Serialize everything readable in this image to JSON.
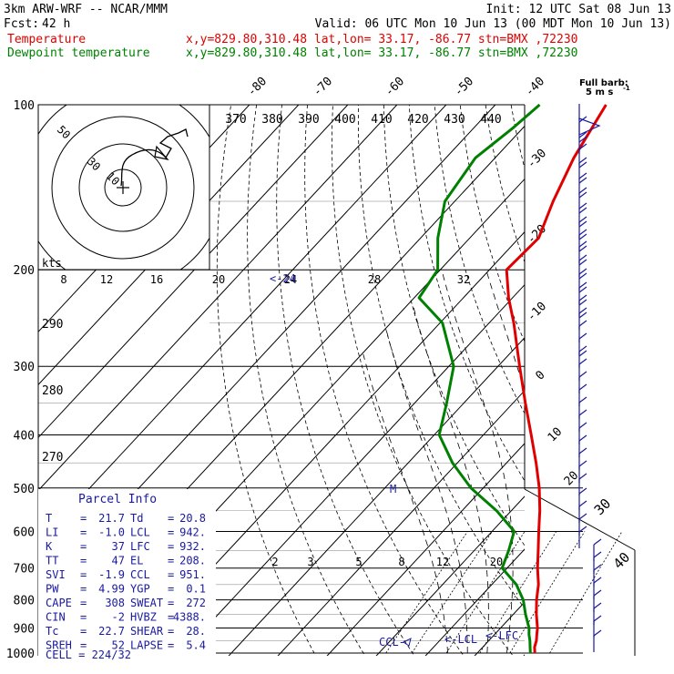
{
  "header": {
    "model": "3km ARW-WRF -- NCAR/MMM",
    "init": "Init: 12 UTC Sat 08 Jun 13",
    "fcst_label": "Fcst:",
    "fcst_value": "42 h",
    "valid": "Valid: 06 UTC Mon 10 Jun 13 (00 MDT Mon 10 Jun 13)",
    "temp_label": "Temperature",
    "temp_loc": "x,y=829.80,310.48   lat,lon= 33.17, -86.77  stn=BMX ,72230",
    "dew_label": "Dewpoint temperature",
    "dew_loc": "x,y=829.80,310.48   lat,lon= 33.17, -86.77  stn=BMX ,72230"
  },
  "colors": {
    "temperature": "#e00000",
    "dewpoint": "#008000",
    "wind_barbs": "#1a1aa0",
    "hodograph": "#000000"
  },
  "chart_data": {
    "type": "line",
    "pressure_levels": [
      "100",
      "200",
      "300",
      "400",
      "500",
      "600",
      "700",
      "800",
      "900",
      "1000"
    ],
    "skewed_isotherm_labels": [
      "-80",
      "-70",
      "-60",
      "-50",
      "-40",
      "-30",
      "-20",
      "-10",
      "0",
      "10",
      "20",
      "30",
      "40"
    ],
    "theta_labels_top": [
      "370",
      "380",
      "390",
      "400",
      "410",
      "420",
      "430",
      "440"
    ],
    "theta_labels_left": [
      "290",
      "280",
      "270"
    ],
    "mixing_ratio_labels": [
      "2",
      "3",
      "5",
      "8",
      "12",
      "20"
    ],
    "hodograph_label": "kts",
    "hodograph_speed_labels": [
      "8",
      "12",
      "16",
      "20",
      "24",
      "28",
      "32"
    ],
    "hodograph_ring_labels": [
      "50",
      "30",
      "10"
    ],
    "lcl_marker": "<-LCL",
    "lfc_marker": "<-LFC",
    "ccl_marker": "CCL-",
    "level_marker_24": "<-24",
    "mark_el": "M",
    "barb_legend": "Full barb:",
    "barb_legend_unit": "5 m s",
    "series": [
      {
        "name": "Temperature",
        "points": [
          [
            1000,
            21.7
          ],
          [
            975,
            20.5
          ],
          [
            950,
            19.7
          ],
          [
            925,
            18.6
          ],
          [
            900,
            17.5
          ],
          [
            850,
            14.7
          ],
          [
            800,
            12.0
          ],
          [
            750,
            9.5
          ],
          [
            700,
            6.2
          ],
          [
            650,
            3.0
          ],
          [
            600,
            -0.5
          ],
          [
            550,
            -4.2
          ],
          [
            500,
            -8.6
          ],
          [
            450,
            -14.0
          ],
          [
            400,
            -20.3
          ],
          [
            350,
            -27.5
          ],
          [
            300,
            -35.6
          ],
          [
            250,
            -45.0
          ],
          [
            225,
            -50.8
          ],
          [
            200,
            -56.5
          ],
          [
            175,
            -56.0
          ],
          [
            150,
            -60.0
          ],
          [
            125,
            -64.0
          ],
          [
            110,
            -66.0
          ],
          [
            100,
            -67.5
          ]
        ]
      },
      {
        "name": "Dewpoint temperature",
        "points": [
          [
            1000,
            20.8
          ],
          [
            975,
            19.6
          ],
          [
            950,
            18.4
          ],
          [
            925,
            17.0
          ],
          [
            900,
            15.8
          ],
          [
            850,
            12.5
          ],
          [
            800,
            9.3
          ],
          [
            750,
            5.0
          ],
          [
            700,
            -1.0
          ],
          [
            650,
            -3.0
          ],
          [
            600,
            -5.5
          ],
          [
            550,
            -13.0
          ],
          [
            500,
            -22.5
          ],
          [
            450,
            -31.0
          ],
          [
            400,
            -39.0
          ],
          [
            350,
            -43.5
          ],
          [
            300,
            -49.0
          ],
          [
            250,
            -59.5
          ],
          [
            225,
            -69.0
          ],
          [
            200,
            -70.5
          ],
          [
            175,
            -76.5
          ],
          [
            150,
            -82.0
          ],
          [
            125,
            -84.0
          ],
          [
            110,
            -82.0
          ],
          [
            100,
            -81.0
          ]
        ]
      }
    ],
    "xlim": [
      -40,
      50
    ],
    "ylim": [
      1000,
      100
    ]
  },
  "parcel_info": {
    "title": "Parcel Info",
    "rows": [
      [
        "T",
        "=",
        "21.7",
        "Td",
        "=",
        "20.8"
      ],
      [
        "LI",
        "=",
        "-1.0",
        "LCL",
        "=",
        "942."
      ],
      [
        "K",
        "=",
        "37",
        "LFC",
        "=",
        "932."
      ],
      [
        "TT",
        "=",
        "47",
        "EL",
        "=",
        "208."
      ],
      [
        "SVI",
        "=",
        "-1.9",
        "CCL",
        "=",
        "951."
      ],
      [
        "PW",
        "=",
        "4.99",
        "YGP",
        "=",
        "0.1"
      ],
      [
        "CAPE",
        "=",
        "308",
        "SWEAT",
        "=",
        "272"
      ],
      [
        "CIN",
        "=",
        "-2",
        "HVBZ",
        "=",
        "4388."
      ],
      [
        "Tc",
        "=",
        "22.7",
        "SHEAR",
        "=",
        "28."
      ],
      [
        "SREH",
        "=",
        "52",
        "LAPSE",
        "=",
        "5.4"
      ]
    ],
    "cell": "CELL = 224/32"
  }
}
